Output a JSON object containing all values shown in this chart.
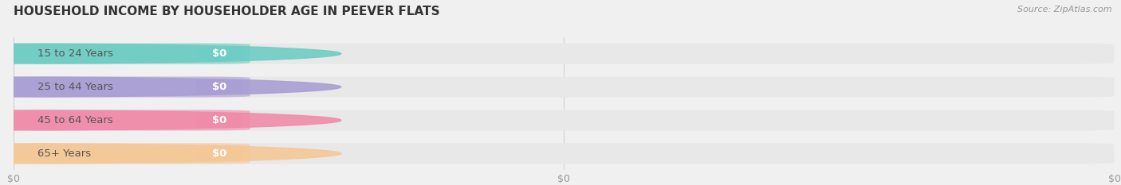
{
  "title": "HOUSEHOLD INCOME BY HOUSEHOLDER AGE IN PEEVER FLATS",
  "source_text": "Source: ZipAtlas.com",
  "categories": [
    "15 to 24 Years",
    "25 to 44 Years",
    "45 to 64 Years",
    "65+ Years"
  ],
  "values": [
    0,
    0,
    0,
    0
  ],
  "bar_colors": [
    "#6ecdc4",
    "#a99fd4",
    "#f08caa",
    "#f5c896"
  ],
  "background_color": "#f0f0f0",
  "bar_bg_color": "#e8e8e8",
  "title_fontsize": 11,
  "source_fontsize": 8,
  "tick_fontsize": 9,
  "label_fontsize": 9.5,
  "value_fontsize": 9.5,
  "figsize": [
    14.06,
    2.33
  ],
  "dpi": 100
}
